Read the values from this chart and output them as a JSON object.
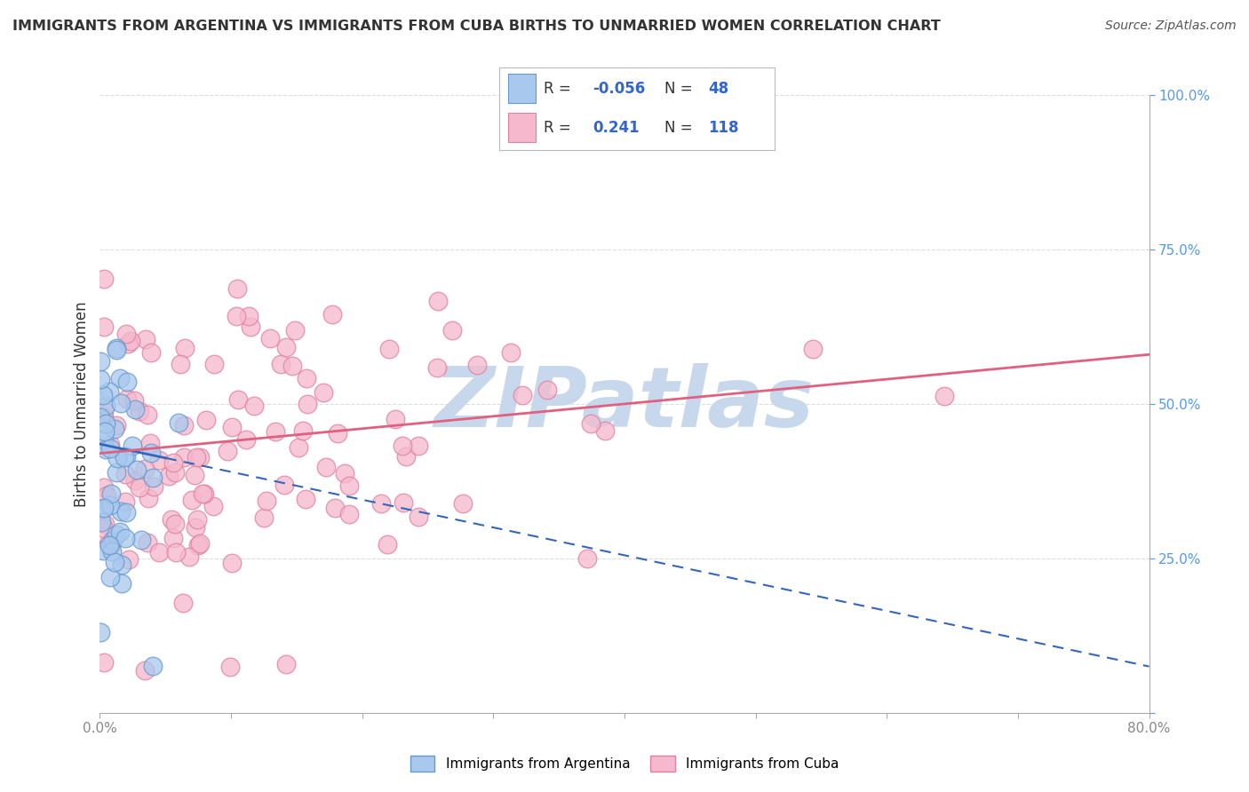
{
  "title": "IMMIGRANTS FROM ARGENTINA VS IMMIGRANTS FROM CUBA BIRTHS TO UNMARRIED WOMEN CORRELATION CHART",
  "source": "Source: ZipAtlas.com",
  "ylabel": "Births to Unmarried Women",
  "argentina_color": "#A8C8EE",
  "argentina_edge_color": "#6699CC",
  "cuba_color": "#F5B8CC",
  "cuba_edge_color": "#E080A0",
  "argentina_line_color": "#3366BB",
  "cuba_line_color": "#E06080",
  "watermark": "ZIPatlas",
  "watermark_color": "#C8D8EC",
  "background_color": "#FFFFFF",
  "grid_color": "#DDDDDD",
  "title_color": "#333333",
  "source_color": "#555555",
  "right_tick_color": "#5599EE",
  "x_tick_color": "#888888",
  "legend_border_color": "#BBBBBB",
  "legend_text_color": "#333333",
  "legend_value_color": "#3366CC",
  "arg_R": -0.056,
  "arg_N": 48,
  "cuba_R": 0.241,
  "cuba_N": 118,
  "xlim": [
    0,
    80
  ],
  "ylim": [
    0,
    100
  ],
  "arg_trend_start_x": 0,
  "arg_trend_start_y": 43.5,
  "arg_trend_end_x": 80,
  "arg_trend_end_y": 7.5,
  "cuba_trend_start_x": 0,
  "cuba_trend_start_y": 42.0,
  "cuba_trend_end_x": 80,
  "cuba_trend_end_y": 58.0
}
